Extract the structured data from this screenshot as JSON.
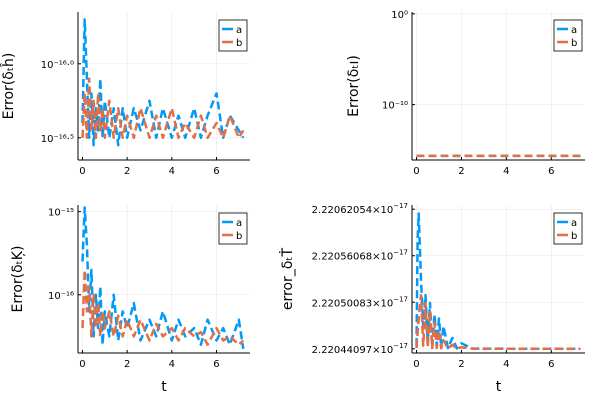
{
  "chart_data": [
    {
      "id": "p1",
      "type": "line",
      "xlabel": "",
      "ylabel": "Error(δₜĥ)",
      "xlim": [
        -0.2,
        7.5
      ],
      "x_ticks": [
        0,
        2,
        4,
        6
      ],
      "y_scale": "log10",
      "ylim_exp": [
        -16.65,
        -15.65
      ],
      "y_ticks": [
        {
          "exp": -16.0,
          "label": "10⁻¹⁶·⁰"
        },
        {
          "exp": -16.5,
          "label": "10⁻¹⁶·⁵"
        }
      ],
      "legend_position": "top-right",
      "series": [
        {
          "name": "a",
          "color": "#009af9",
          "x": [
            0,
            0.1,
            0.2,
            0.3,
            0.4,
            0.5,
            0.6,
            0.7,
            0.8,
            0.9,
            1,
            1.2,
            1.4,
            1.6,
            1.8,
            2,
            2.3,
            2.6,
            3,
            3.3,
            3.6,
            4,
            4.3,
            4.6,
            5,
            5.3,
            5.6,
            6,
            6.3,
            6.6,
            7,
            7.2
          ],
          "y_exp": [
            -16.4,
            -15.7,
            -16.1,
            -16.5,
            -16.2,
            -16.55,
            -16.3,
            -16.45,
            -16.1,
            -16.5,
            -16.25,
            -16.5,
            -16.3,
            -16.55,
            -16.3,
            -16.5,
            -16.3,
            -16.45,
            -16.25,
            -16.5,
            -16.3,
            -16.5,
            -16.35,
            -16.5,
            -16.3,
            -16.5,
            -16.35,
            -16.2,
            -16.5,
            -16.35,
            -16.45,
            -16.5
          ]
        },
        {
          "name": "b",
          "color": "#e26f46",
          "x": [
            0,
            0.1,
            0.2,
            0.3,
            0.4,
            0.5,
            0.6,
            0.7,
            0.8,
            0.9,
            1,
            1.2,
            1.4,
            1.6,
            1.8,
            2,
            2.3,
            2.6,
            3,
            3.3,
            3.6,
            4,
            4.3,
            4.6,
            5,
            5.3,
            5.6,
            6,
            6.3,
            6.6,
            7,
            7.2
          ],
          "y_exp": [
            -16.5,
            -16.2,
            -16.5,
            -16.1,
            -16.45,
            -16.25,
            -16.5,
            -16.2,
            -16.45,
            -16.3,
            -16.5,
            -16.25,
            -16.5,
            -16.3,
            -16.5,
            -16.35,
            -16.5,
            -16.3,
            -16.5,
            -16.35,
            -16.5,
            -16.3,
            -16.5,
            -16.4,
            -16.5,
            -16.35,
            -16.5,
            -16.4,
            -16.5,
            -16.35,
            -16.5,
            -16.45
          ]
        }
      ]
    },
    {
      "id": "p2",
      "type": "line",
      "xlabel": "",
      "ylabel": "Error(δₜı)",
      "xlim": [
        -0.2,
        7.5
      ],
      "x_ticks": [
        0,
        2,
        4,
        6
      ],
      "y_scale": "log10",
      "ylim_exp": [
        -16.1,
        0.2
      ],
      "y_ticks": [
        {
          "exp": 0,
          "label": "10⁰"
        },
        {
          "exp": -10,
          "label": "10⁻¹⁰"
        }
      ],
      "legend_position": "top-right",
      "series": [
        {
          "name": "a",
          "color": "#009af9",
          "x": [
            0,
            7.3
          ],
          "y_exp": [
            -15.65,
            -15.65
          ]
        },
        {
          "name": "b",
          "color": "#e26f46",
          "x": [
            0,
            7.3
          ],
          "y_exp": [
            -15.65,
            -15.65
          ]
        }
      ]
    },
    {
      "id": "p3",
      "type": "line",
      "xlabel": "t",
      "ylabel": "Error(δₜĶ)",
      "xlim": [
        -0.2,
        7.5
      ],
      "x_ticks": [
        0,
        2,
        4,
        6
      ],
      "y_scale": "log10",
      "ylim_exp": [
        -16.7,
        -14.92
      ],
      "y_ticks": [
        {
          "exp": -15,
          "label": "10⁻¹⁵"
        },
        {
          "exp": -16,
          "label": "10⁻¹⁶"
        }
      ],
      "legend_position": "top-right",
      "series": [
        {
          "name": "a",
          "color": "#009af9",
          "x": [
            0,
            0.1,
            0.2,
            0.3,
            0.4,
            0.5,
            0.6,
            0.7,
            0.8,
            0.9,
            1,
            1.2,
            1.4,
            1.6,
            1.8,
            2,
            2.3,
            2.6,
            3,
            3.3,
            3.6,
            4,
            4.3,
            4.6,
            5,
            5.3,
            5.6,
            6,
            6.3,
            6.6,
            7,
            7.2
          ],
          "y_exp": [
            -15.6,
            -14.95,
            -15.4,
            -16.2,
            -15.7,
            -16.5,
            -16.0,
            -16.4,
            -15.9,
            -16.6,
            -16.2,
            -16.5,
            -16.0,
            -16.55,
            -16.2,
            -16.4,
            -16.1,
            -16.55,
            -16.3,
            -16.5,
            -16.2,
            -16.55,
            -16.3,
            -16.5,
            -16.4,
            -16.6,
            -16.3,
            -16.55,
            -16.4,
            -16.6,
            -16.3,
            -16.65
          ]
        },
        {
          "name": "b",
          "color": "#e26f46",
          "x": [
            0,
            0.1,
            0.2,
            0.3,
            0.4,
            0.5,
            0.6,
            0.7,
            0.8,
            0.9,
            1,
            1.2,
            1.4,
            1.6,
            1.8,
            2,
            2.3,
            2.6,
            3,
            3.3,
            3.6,
            4,
            4.3,
            4.6,
            5,
            5.3,
            5.6,
            6,
            6.3,
            6.6,
            7,
            7.2
          ],
          "y_exp": [
            -16.4,
            -15.7,
            -16.2,
            -15.9,
            -16.5,
            -16.0,
            -16.4,
            -16.1,
            -16.5,
            -16.2,
            -16.4,
            -16.2,
            -16.5,
            -16.25,
            -16.5,
            -16.3,
            -16.5,
            -16.3,
            -16.55,
            -16.35,
            -16.5,
            -16.4,
            -16.55,
            -16.4,
            -16.5,
            -16.45,
            -16.6,
            -16.4,
            -16.55,
            -16.5,
            -16.6,
            -16.55
          ]
        }
      ]
    },
    {
      "id": "p4",
      "type": "line",
      "xlabel": "t",
      "ylabel": "error_δₜṪ",
      "xlim": [
        -0.2,
        7.5
      ],
      "x_ticks": [
        0,
        2,
        4,
        6
      ],
      "y_scale": "linear",
      "ylim": [
        2.22044097e-17,
        2.22062054e-17
      ],
      "y_ticks": [
        {
          "value": 2.22062054e-17,
          "mantissa": "2.22062054",
          "exponent": "−17"
        },
        {
          "value": 2.22056068e-17,
          "mantissa": "2.22056068",
          "exponent": "−17"
        },
        {
          "value": 2.22050083e-17,
          "mantissa": "2.22050083",
          "exponent": "−17"
        },
        {
          "value": 2.22044097e-17,
          "mantissa": "2.22044097",
          "exponent": "−17"
        }
      ],
      "legend_position": "top-right",
      "series": [
        {
          "name": "a",
          "color": "#009af9",
          "x": [
            0,
            0.05,
            0.1,
            0.2,
            0.3,
            0.4,
            0.5,
            0.6,
            0.7,
            0.8,
            0.9,
            1.0,
            1.1,
            1.2,
            1.4,
            1.6,
            1.8,
            2.0,
            2.5,
            3,
            4,
            5,
            6,
            7,
            7.3
          ],
          "y": [
            2.2204445e-17,
            2.22058e-17,
            2.220615e-17,
            2.22053e-17,
            2.22047e-17,
            2.22051e-17,
            2.22045e-17,
            2.2205e-17,
            2.220442e-17,
            2.220485e-17,
            2.220445e-17,
            2.22048e-17,
            2.220443e-17,
            2.22047e-17,
            2.220442e-17,
            2.220455e-17,
            2.2204415e-17,
            2.220448e-17,
            2.2204413e-17,
            2.2204412e-17,
            2.2204411e-17,
            2.2204411e-17,
            2.2204411e-17,
            2.2204411e-17,
            2.2204411e-17
          ]
        },
        {
          "name": "b",
          "color": "#e26f46",
          "x": [
            0,
            0.1,
            0.2,
            0.3,
            0.4,
            0.5,
            0.6,
            0.7,
            0.8,
            0.9,
            1.0,
            1.1,
            1.2,
            1.4,
            1.6,
            1.8,
            2.0,
            2.5,
            3,
            4,
            5,
            6,
            7,
            7.3
          ],
          "y": [
            2.220442e-17,
            2.22048e-17,
            2.22051e-17,
            2.220445e-17,
            2.2205e-17,
            2.220443e-17,
            2.22049e-17,
            2.220442e-17,
            2.220475e-17,
            2.220442e-17,
            2.220465e-17,
            2.2204415e-17,
            2.220452e-17,
            2.2204415e-17,
            2.220446e-17,
            2.2204413e-17,
            2.220443e-17,
            2.2204412e-17,
            2.2204411e-17,
            2.2204411e-17,
            2.2204411e-17,
            2.2204411e-17,
            2.2204411e-17,
            2.2204411e-17
          ]
        }
      ]
    }
  ]
}
